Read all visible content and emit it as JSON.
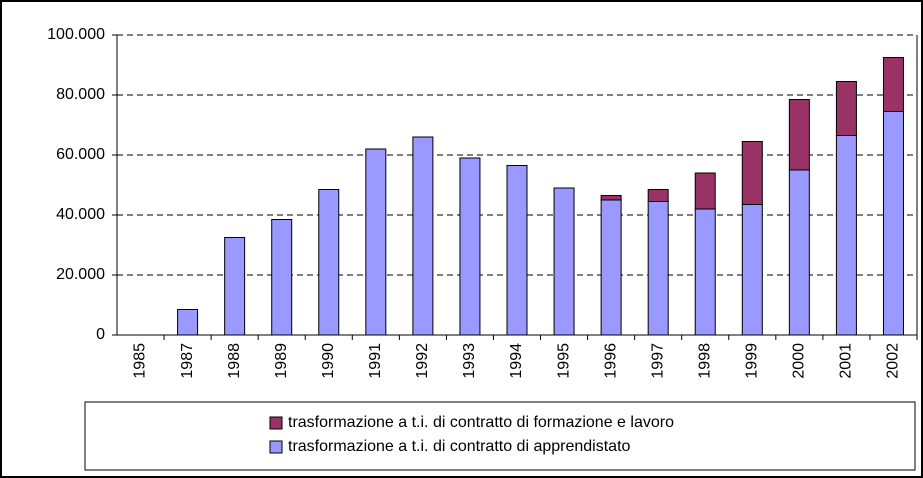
{
  "chart_data": {
    "type": "bar",
    "stacked": true,
    "categories": [
      "1985",
      "1987",
      "1988",
      "1989",
      "1990",
      "1991",
      "1992",
      "1993",
      "1994",
      "1995",
      "1996",
      "1997",
      "1998",
      "1999",
      "2000",
      "2001",
      "2002"
    ],
    "series": [
      {
        "name": "trasformazione a t.i. di contratto di apprendistato",
        "color": "#9999ff",
        "values": [
          0,
          8500,
          32500,
          38500,
          48500,
          62000,
          66000,
          59000,
          56500,
          49000,
          45000,
          44500,
          42000,
          43500,
          55000,
          66500,
          74500
        ]
      },
      {
        "name": "trasformazione a t.i. di contratto di formazione e lavoro",
        "color": "#993366",
        "values": [
          0,
          0,
          0,
          0,
          0,
          0,
          0,
          0,
          0,
          0,
          1500,
          4000,
          12000,
          21000,
          23500,
          18000,
          18000
        ]
      }
    ],
    "ylim": [
      0,
      100000
    ],
    "yticks": [
      0,
      {
        "value": 20000,
        "label": "20.000"
      },
      {
        "value": 40000,
        "label": "40.000"
      },
      {
        "value": 60000,
        "label": "60.000"
      },
      {
        "value": 80000,
        "label": "80.000"
      },
      {
        "value": 100000,
        "label": "100.000"
      }
    ],
    "grid": true
  }
}
